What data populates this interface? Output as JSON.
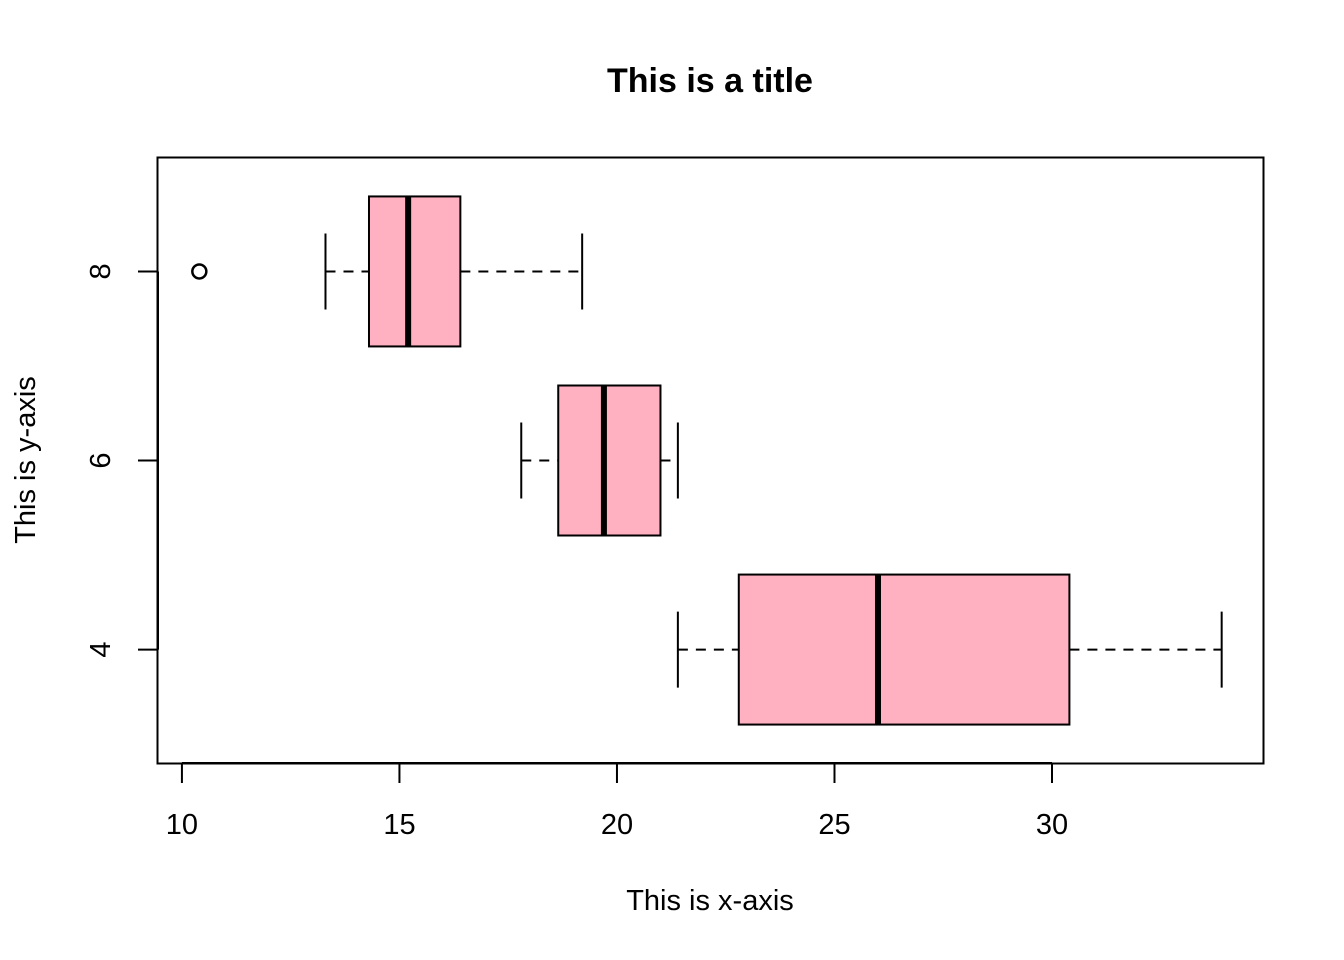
{
  "chart_data": {
    "type": "boxplot",
    "orientation": "horizontal",
    "title": "This is a title",
    "xlabel": "This is x-axis",
    "ylabel": "This is y-axis",
    "xlim": [
      9.45,
      34.85
    ],
    "x_ticks": [
      10,
      15,
      20,
      25,
      30
    ],
    "y_ticks": [
      4,
      6,
      8
    ],
    "ylim": [
      2.8,
      9.2
    ],
    "box_color": "#FFB0C1",
    "line_color": "#000000",
    "grid": false,
    "legend": "none",
    "groups": [
      {
        "name": "4",
        "y": 4,
        "min": 21.4,
        "q1": 22.8,
        "median": 26.0,
        "q3": 30.4,
        "max": 33.9,
        "outliers": []
      },
      {
        "name": "6",
        "y": 6,
        "min": 17.8,
        "q1": 18.65,
        "median": 19.7,
        "q3": 21.0,
        "max": 21.4,
        "outliers": []
      },
      {
        "name": "8",
        "y": 8,
        "min": 13.3,
        "q1": 14.3,
        "median": 15.2,
        "q3": 16.4,
        "max": 19.2,
        "outliers": [
          10.4
        ]
      }
    ]
  }
}
